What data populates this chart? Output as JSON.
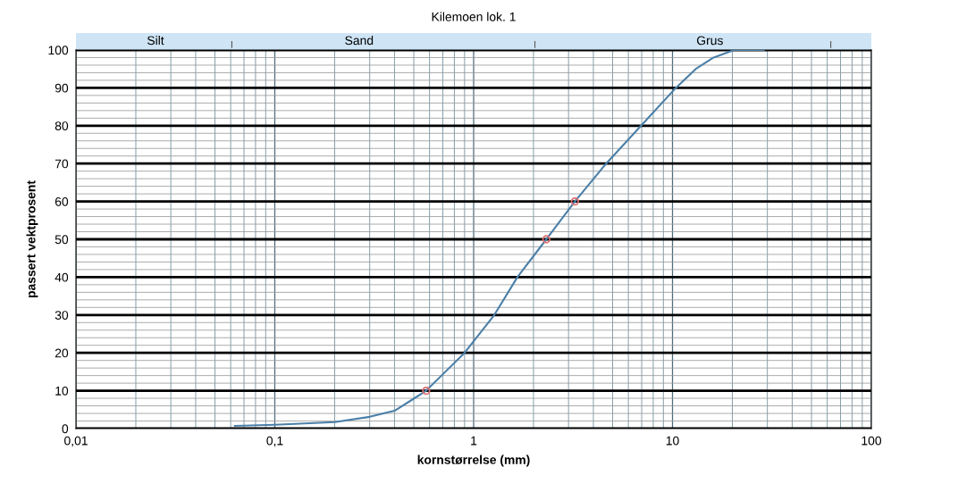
{
  "chart_data": {
    "type": "line",
    "title": "Kilemoen lok. 1",
    "xlabel": "kornstørrelse (mm)",
    "ylabel": "passert vektprosent",
    "log": "x",
    "grid": true,
    "xlim": [
      0.01,
      100
    ],
    "ylim": [
      0,
      100
    ],
    "xticks": [
      {
        "value": 0.01,
        "label": "0,01"
      },
      {
        "value": 0.02,
        "label": null
      },
      {
        "value": 0.03,
        "label": null
      },
      {
        "value": 0.04,
        "label": null
      },
      {
        "value": 0.05,
        "label": null
      },
      {
        "value": 0.06,
        "label": null
      },
      {
        "value": 0.07,
        "label": null
      },
      {
        "value": 0.08,
        "label": null
      },
      {
        "value": 0.09,
        "label": null
      },
      {
        "value": 0.1,
        "label": "0,1"
      },
      {
        "value": 0.2,
        "label": null
      },
      {
        "value": 0.3,
        "label": null
      },
      {
        "value": 0.4,
        "label": null
      },
      {
        "value": 0.5,
        "label": null
      },
      {
        "value": 0.6,
        "label": null
      },
      {
        "value": 0.7,
        "label": null
      },
      {
        "value": 0.8,
        "label": null
      },
      {
        "value": 0.9,
        "label": null
      },
      1,
      {
        "value": 2,
        "label": null
      },
      {
        "value": 3,
        "label": null
      },
      {
        "value": 4,
        "label": null
      },
      {
        "value": 5,
        "label": null
      },
      {
        "value": 6,
        "label": null
      },
      {
        "value": 7,
        "label": null
      },
      {
        "value": 8,
        "label": null
      },
      {
        "value": 9,
        "label": null
      },
      10,
      {
        "value": 20,
        "label": null
      },
      {
        "value": 30,
        "label": null
      },
      {
        "value": 40,
        "label": null
      },
      {
        "value": 50,
        "label": null
      },
      {
        "value": 60,
        "label": null
      },
      {
        "value": 70,
        "label": null
      },
      {
        "value": 80,
        "label": null
      },
      {
        "value": 90,
        "label": null
      },
      100
    ],
    "yticks": [
      0,
      10,
      20,
      30,
      40,
      50,
      60,
      70,
      80,
      90,
      100
    ],
    "annotations": [
      "Silt",
      "Sand",
      "Grus"
    ],
    "series": [
      {
        "color": "#4a7fa8",
        "marker": "none",
        "line_style": "solid",
        "x": [
          0.063,
          0.1,
          0.2,
          0.3,
          0.4,
          0.5,
          0.577,
          0.9,
          1.27,
          1.66,
          2.32,
          3.23,
          4.64,
          6.95,
          10.4,
          13.1,
          16.1,
          20.4,
          28.8
        ],
        "values": [
          0.7,
          1.0,
          1.7,
          3.1,
          4.7,
          7.9,
          10,
          20,
          30,
          40,
          50,
          60,
          70,
          80,
          90,
          95,
          98,
          100,
          100
        ]
      },
      {
        "type": "scatter",
        "color": "#e07070",
        "marker": "circle",
        "x": [
          0.577,
          2.32,
          3.23
        ],
        "values": [
          10,
          50,
          60
        ]
      }
    ]
  }
}
